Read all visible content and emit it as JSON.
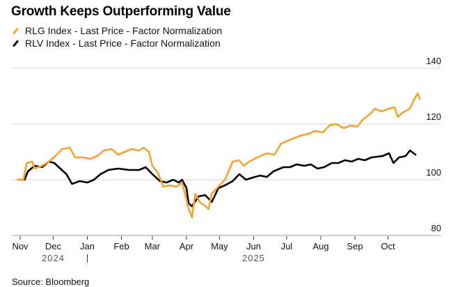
{
  "chart_data": {
    "type": "line",
    "title": "Growth Keeps Outperforming Value",
    "xlabel": "",
    "ylabel": "",
    "x_unit": "days since 2024-11-01",
    "xlim": [
      -2,
      365
    ],
    "ylim": [
      80,
      140
    ],
    "yticks": [
      80,
      100,
      120,
      140
    ],
    "xticks": [
      {
        "day": 0,
        "label": "Nov"
      },
      {
        "day": 30,
        "label": "Dec"
      },
      {
        "day": 61,
        "label": "Jan"
      },
      {
        "day": 92,
        "label": "Feb"
      },
      {
        "day": 120,
        "label": "Mar"
      },
      {
        "day": 151,
        "label": "Apr"
      },
      {
        "day": 181,
        "label": "May"
      },
      {
        "day": 212,
        "label": "Jun"
      },
      {
        "day": 242,
        "label": "Jul"
      },
      {
        "day": 273,
        "label": "Aug"
      },
      {
        "day": 304,
        "label": "Sep"
      },
      {
        "day": 334,
        "label": "Oct"
      }
    ],
    "year_labels": [
      {
        "day": 30,
        "label": "2024"
      },
      {
        "day": 212,
        "label": "2025"
      }
    ],
    "year_divider_day": 61,
    "grid": true,
    "legend_position": "top-left",
    "series": [
      {
        "name": "RLG Index - Last Price - Factor Normalization",
        "color": "#f7a133",
        "points": [
          [
            -2,
            100
          ],
          [
            3,
            100
          ],
          [
            6,
            106
          ],
          [
            11,
            106.5
          ],
          [
            13,
            104
          ],
          [
            20,
            105
          ],
          [
            26,
            106.5
          ],
          [
            32,
            108.5
          ],
          [
            38,
            111
          ],
          [
            45,
            111.5
          ],
          [
            50,
            108
          ],
          [
            57,
            108
          ],
          [
            64,
            107.5
          ],
          [
            70,
            108.5
          ],
          [
            76,
            110.5
          ],
          [
            83,
            111
          ],
          [
            89,
            109
          ],
          [
            95,
            110
          ],
          [
            101,
            111
          ],
          [
            108,
            110.5
          ],
          [
            112,
            111.5
          ],
          [
            117,
            110
          ],
          [
            120,
            105
          ],
          [
            125,
            102.5
          ],
          [
            130,
            97.5
          ],
          [
            136,
            98
          ],
          [
            142,
            97.5
          ],
          [
            147,
            99
          ],
          [
            150,
            94.5
          ],
          [
            153,
            89.5
          ],
          [
            156,
            86.5
          ],
          [
            159,
            95
          ],
          [
            163,
            92
          ],
          [
            168,
            90.5
          ],
          [
            171,
            89.5
          ],
          [
            174,
            95
          ],
          [
            180,
            97.5
          ],
          [
            186,
            100
          ],
          [
            193,
            106.5
          ],
          [
            199,
            107
          ],
          [
            203,
            105
          ],
          [
            208,
            106.5
          ],
          [
            218,
            108.5
          ],
          [
            224,
            109.5
          ],
          [
            231,
            109
          ],
          [
            237,
            113
          ],
          [
            246,
            114.5
          ],
          [
            256,
            116
          ],
          [
            262,
            116.5
          ],
          [
            268,
            117.5
          ],
          [
            275,
            117
          ],
          [
            281,
            119.5
          ],
          [
            287,
            120
          ],
          [
            294,
            118.5
          ],
          [
            300,
            119.5
          ],
          [
            306,
            119
          ],
          [
            311,
            121.5
          ],
          [
            319,
            124
          ],
          [
            322,
            125.5
          ],
          [
            328,
            124.5
          ],
          [
            335,
            125.5
          ],
          [
            340,
            126
          ],
          [
            343,
            122.5
          ],
          [
            347,
            124
          ],
          [
            354,
            125.5
          ],
          [
            358,
            129
          ],
          [
            361,
            131
          ],
          [
            363,
            129
          ]
        ]
      },
      {
        "name": "RLV Index - Last Price - Factor Normalization",
        "color": "#000000",
        "points": [
          [
            -2,
            100
          ],
          [
            4,
            100
          ],
          [
            7,
            103
          ],
          [
            13,
            105
          ],
          [
            20,
            104.5
          ],
          [
            26,
            106.5
          ],
          [
            31,
            106
          ],
          [
            35,
            104.5
          ],
          [
            42,
            102
          ],
          [
            47,
            98.5
          ],
          [
            54,
            99.5
          ],
          [
            61,
            99
          ],
          [
            67,
            100
          ],
          [
            73,
            102
          ],
          [
            80,
            103.5
          ],
          [
            89,
            104
          ],
          [
            99,
            103.5
          ],
          [
            108,
            103.5
          ],
          [
            114,
            104.5
          ],
          [
            120,
            102
          ],
          [
            127,
            99.5
          ],
          [
            133,
            99
          ],
          [
            139,
            100
          ],
          [
            144,
            99
          ],
          [
            147,
            100
          ],
          [
            151,
            97
          ],
          [
            153,
            91.5
          ],
          [
            156,
            90.5
          ],
          [
            162,
            94
          ],
          [
            168,
            94.5
          ],
          [
            174,
            92
          ],
          [
            180,
            97
          ],
          [
            186,
            98
          ],
          [
            193,
            99.5
          ],
          [
            199,
            102
          ],
          [
            205,
            100
          ],
          [
            211,
            100.75
          ],
          [
            218,
            101.5
          ],
          [
            224,
            101
          ],
          [
            230,
            103
          ],
          [
            239,
            104.5
          ],
          [
            245,
            104.5
          ],
          [
            251,
            105.5
          ],
          [
            258,
            105
          ],
          [
            264,
            105.5
          ],
          [
            270,
            104
          ],
          [
            276,
            104.5
          ],
          [
            283,
            106
          ],
          [
            289,
            106
          ],
          [
            295,
            107
          ],
          [
            301,
            106.5
          ],
          [
            307,
            107.5
          ],
          [
            313,
            107
          ],
          [
            319,
            108
          ],
          [
            329,
            108.5
          ],
          [
            335,
            109.5
          ],
          [
            339,
            106
          ],
          [
            344,
            108
          ],
          [
            350,
            108.5
          ],
          [
            354,
            110.5
          ],
          [
            359,
            109
          ]
        ]
      }
    ],
    "source": "Source: Bloomberg"
  }
}
